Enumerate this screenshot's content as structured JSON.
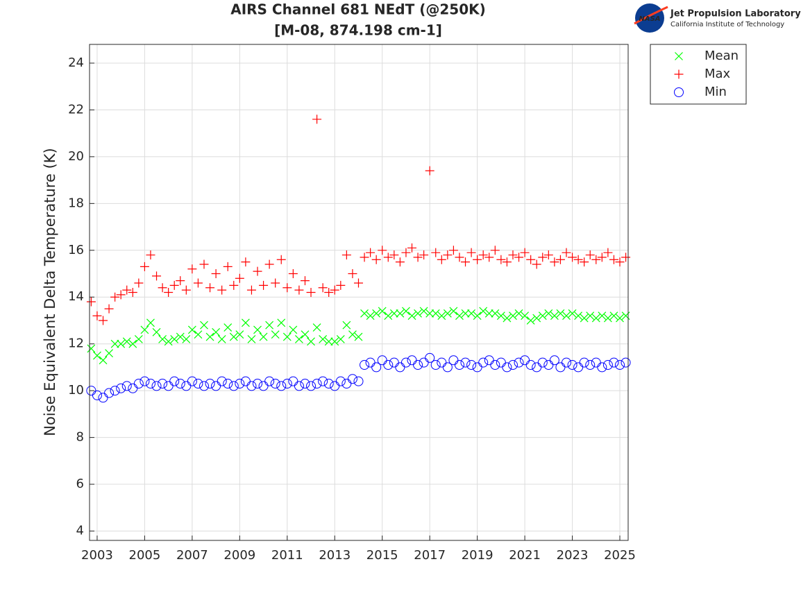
{
  "chart_data": {
    "type": "scatter",
    "title": [
      "AIRS Channel 681 NEdT (@250K)",
      "[M-08, 874.198 cm-1]"
    ],
    "y_label": "Noise Equivalent Delta Temperature (K)",
    "logo": {
      "badge": "NASA",
      "name": "Jet Propulsion Laboratory",
      "subtitle": "California Institute of Technology"
    },
    "legend_position": "outside-top-right",
    "grid": true,
    "xlim": [
      2002.68,
      2025.35
    ],
    "ylim": [
      3.6,
      24.8
    ],
    "xticks": [
      2003,
      2005,
      2007,
      2009,
      2011,
      2013,
      2015,
      2017,
      2019,
      2021,
      2023,
      2025
    ],
    "yticks": [
      4,
      6,
      8,
      10,
      12,
      14,
      16,
      18,
      20,
      22,
      24
    ],
    "x": [
      2002.75,
      2003,
      2003.25,
      2003.5,
      2003.75,
      2004,
      2004.25,
      2004.5,
      2004.75,
      2005,
      2005.25,
      2005.5,
      2005.75,
      2006,
      2006.25,
      2006.5,
      2006.75,
      2007,
      2007.25,
      2007.5,
      2007.75,
      2008,
      2008.25,
      2008.5,
      2008.75,
      2009,
      2009.25,
      2009.5,
      2009.75,
      2010,
      2010.25,
      2010.5,
      2010.75,
      2011,
      2011.25,
      2011.5,
      2011.75,
      2012,
      2012.25,
      2012.5,
      2012.75,
      2013,
      2013.25,
      2013.5,
      2013.75,
      2014,
      2014.25,
      2014.5,
      2014.75,
      2015,
      2015.25,
      2015.5,
      2015.75,
      2016,
      2016.25,
      2016.5,
      2016.75,
      2017,
      2017.25,
      2017.5,
      2017.75,
      2018,
      2018.25,
      2018.5,
      2018.75,
      2019,
      2019.25,
      2019.5,
      2019.75,
      2020,
      2020.25,
      2020.5,
      2020.75,
      2021,
      2021.25,
      2021.5,
      2021.75,
      2022,
      2022.25,
      2022.5,
      2022.75,
      2023,
      2023.25,
      2023.5,
      2023.75,
      2024,
      2024.25,
      2024.5,
      2024.75,
      2025,
      2025.25
    ],
    "series": [
      {
        "name": "Mean",
        "color": "#00ff00",
        "marker": "x",
        "values": [
          11.8,
          11.5,
          11.3,
          11.6,
          12.0,
          12.0,
          12.1,
          12.0,
          12.2,
          12.6,
          12.9,
          12.5,
          12.2,
          12.1,
          12.2,
          12.3,
          12.2,
          12.6,
          12.4,
          12.8,
          12.3,
          12.5,
          12.2,
          12.7,
          12.3,
          12.4,
          12.9,
          12.2,
          12.6,
          12.3,
          12.8,
          12.4,
          12.9,
          12.3,
          12.6,
          12.2,
          12.4,
          12.1,
          12.7,
          12.2,
          12.1,
          12.1,
          12.2,
          12.8,
          12.4,
          12.3,
          13.3,
          13.2,
          13.3,
          13.4,
          13.2,
          13.3,
          13.3,
          13.4,
          13.2,
          13.3,
          13.4,
          13.3,
          13.3,
          13.2,
          13.3,
          13.4,
          13.2,
          13.3,
          13.3,
          13.2,
          13.4,
          13.3,
          13.3,
          13.2,
          13.1,
          13.2,
          13.3,
          13.2,
          13.0,
          13.1,
          13.2,
          13.3,
          13.2,
          13.3,
          13.2,
          13.3,
          13.2,
          13.1,
          13.2,
          13.1,
          13.2,
          13.1,
          13.2,
          13.1,
          13.2
        ]
      },
      {
        "name": "Max",
        "color": "#ff0000",
        "marker": "+",
        "values": [
          13.8,
          13.2,
          13.0,
          13.5,
          14.0,
          14.1,
          14.3,
          14.2,
          14.6,
          15.3,
          15.8,
          14.9,
          14.4,
          14.2,
          14.5,
          14.7,
          14.3,
          15.2,
          14.6,
          15.4,
          14.4,
          15.0,
          14.3,
          15.3,
          14.5,
          14.8,
          15.5,
          14.3,
          15.1,
          14.5,
          15.4,
          14.6,
          15.6,
          14.4,
          15.0,
          14.3,
          14.7,
          14.2,
          21.6,
          14.4,
          14.2,
          14.3,
          14.5,
          15.8,
          15.0,
          14.6,
          15.7,
          15.9,
          15.6,
          16.0,
          15.7,
          15.8,
          15.5,
          15.9,
          16.1,
          15.7,
          15.8,
          19.4,
          15.9,
          15.6,
          15.8,
          16.0,
          15.7,
          15.5,
          15.9,
          15.6,
          15.8,
          15.7,
          16.0,
          15.6,
          15.5,
          15.8,
          15.7,
          15.9,
          15.6,
          15.4,
          15.7,
          15.8,
          15.5,
          15.6,
          15.9,
          15.7,
          15.6,
          15.5,
          15.8,
          15.6,
          15.7,
          15.9,
          15.6,
          15.5,
          15.7
        ]
      },
      {
        "name": "Min",
        "color": "#0000ff",
        "marker": "o",
        "values": [
          10.0,
          9.8,
          9.7,
          9.9,
          10.0,
          10.1,
          10.2,
          10.1,
          10.3,
          10.4,
          10.3,
          10.2,
          10.3,
          10.2,
          10.4,
          10.3,
          10.2,
          10.4,
          10.3,
          10.2,
          10.3,
          10.2,
          10.4,
          10.3,
          10.2,
          10.3,
          10.4,
          10.2,
          10.3,
          10.2,
          10.4,
          10.3,
          10.2,
          10.3,
          10.4,
          10.2,
          10.3,
          10.2,
          10.3,
          10.4,
          10.3,
          10.2,
          10.4,
          10.3,
          10.5,
          10.4,
          11.1,
          11.2,
          11.0,
          11.3,
          11.1,
          11.2,
          11.0,
          11.2,
          11.3,
          11.1,
          11.2,
          11.4,
          11.1,
          11.2,
          11.0,
          11.3,
          11.1,
          11.2,
          11.1,
          11.0,
          11.2,
          11.3,
          11.1,
          11.2,
          11.0,
          11.1,
          11.2,
          11.3,
          11.1,
          11.0,
          11.2,
          11.1,
          11.3,
          11.0,
          11.2,
          11.1,
          11.0,
          11.2,
          11.1,
          11.2,
          11.0,
          11.1,
          11.2,
          11.1,
          11.2
        ]
      }
    ]
  }
}
